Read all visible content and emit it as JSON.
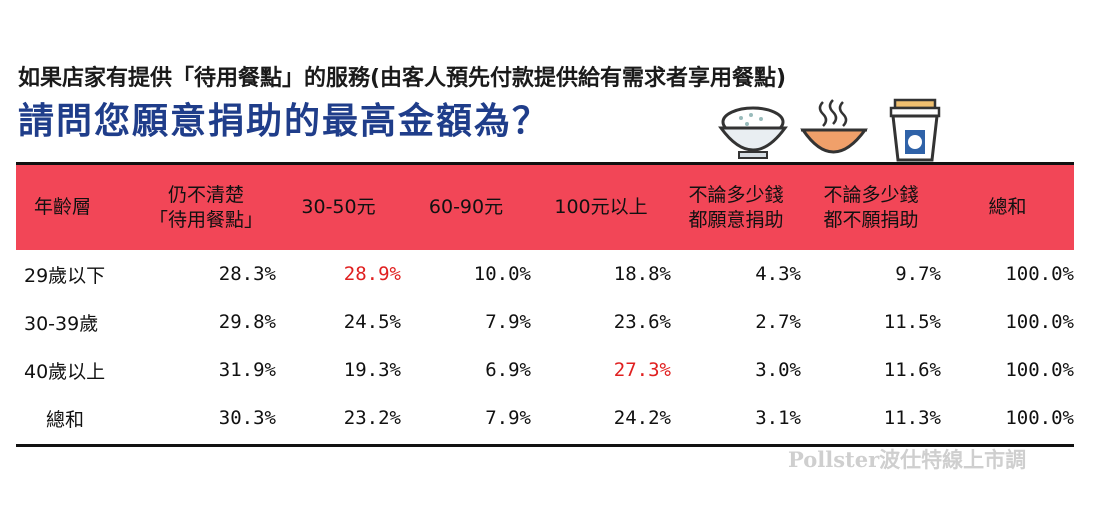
{
  "subtitle": "如果店家有提供「待用餐點」的服務(由客人預先付款提供給有需求者享用餐點)",
  "title": "請問您願意捐助的最高金額為？",
  "watermark": "Pollster波仕特線上市調",
  "icons": [
    "rice-bowl-icon",
    "soup-bowl-icon",
    "drink-cup-icon"
  ],
  "colors": {
    "header_bg": "#f24657",
    "title": "#1f3d8a",
    "highlight": "#e02020"
  },
  "chart_data": {
    "type": "table",
    "columns": [
      "年齡層",
      "仍不清楚\n「待用餐點」",
      "30-50元",
      "60-90元",
      "100元以上",
      "不論多少錢\n都願意捐助",
      "不論多少錢\n都不願捐助",
      "總和"
    ],
    "rows": [
      {
        "label": "29歲以下",
        "values": [
          "28.3%",
          "28.9%",
          "10.0%",
          "18.8%",
          "4.3%",
          "9.7%",
          "100.0%"
        ],
        "highlight": [
          1
        ]
      },
      {
        "label": "30-39歲",
        "values": [
          "29.8%",
          "24.5%",
          "7.9%",
          "23.6%",
          "2.7%",
          "11.5%",
          "100.0%"
        ],
        "highlight": []
      },
      {
        "label": "40歲以上",
        "values": [
          "31.9%",
          "19.3%",
          "6.9%",
          "27.3%",
          "3.0%",
          "11.6%",
          "100.0%"
        ],
        "highlight": [
          3
        ]
      },
      {
        "label": "總和",
        "values": [
          "30.3%",
          "23.2%",
          "7.9%",
          "24.2%",
          "3.1%",
          "11.3%",
          "100.0%"
        ],
        "highlight": []
      }
    ]
  }
}
